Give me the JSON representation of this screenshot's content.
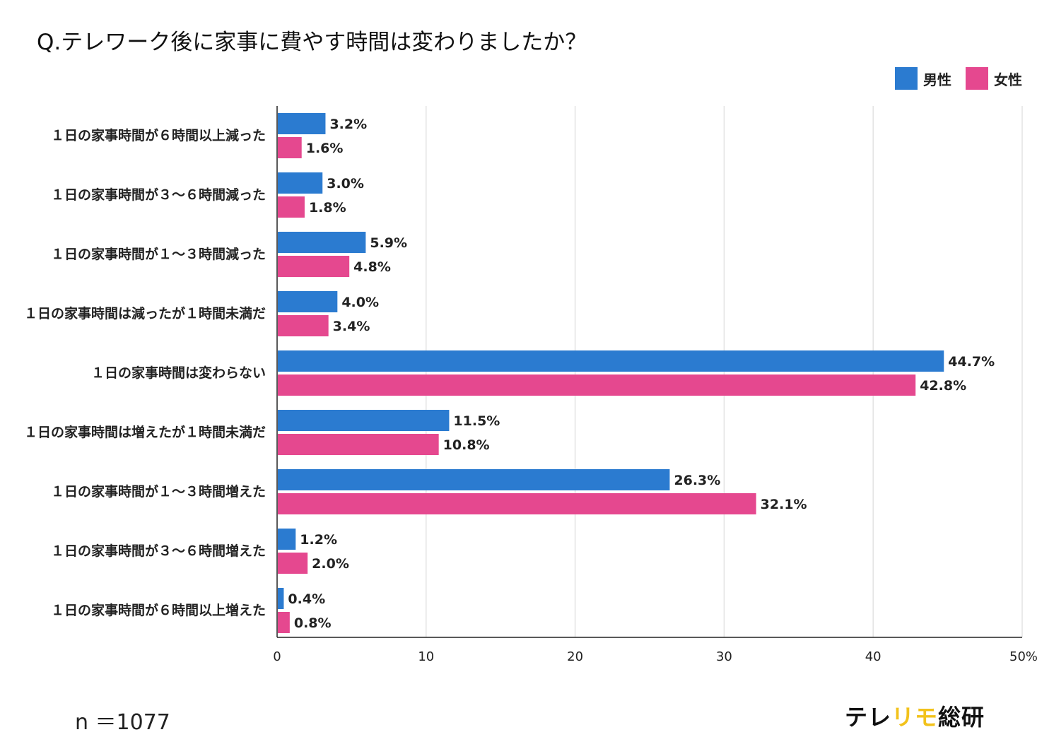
{
  "title": "Q.テレワーク後に家事に費やす時間は変わりましたか？",
  "sample_size": "n ＝1077",
  "logo": {
    "part1": "テレ",
    "part2": "リモ",
    "part3": "総研"
  },
  "colors": {
    "male": "#2b7bd0",
    "female": "#e5488f",
    "grid": "#e3e3e3",
    "axis": "#222222"
  },
  "chart_data": {
    "type": "bar",
    "orientation": "horizontal",
    "categories": [
      "１日の家事時間が６時間以上減った",
      "１日の家事時間が３～６時間減った",
      "１日の家事時間が１～３時間減った",
      "１日の家事時間は減ったが１時間未満だ",
      "１日の家事時間は変わらない",
      "１日の家事時間は増えたが１時間未満だ",
      "１日の家事時間が１～３時間増えた",
      "１日の家事時間が３～６時間増えた",
      "１日の家事時間が６時間以上増えた"
    ],
    "series": [
      {
        "name": "男性",
        "color": "#2b7bd0",
        "values": [
          3.2,
          3.0,
          5.9,
          4.0,
          44.7,
          11.5,
          26.3,
          1.2,
          0.4
        ]
      },
      {
        "name": "女性",
        "color": "#e5488f",
        "values": [
          1.6,
          1.8,
          4.8,
          3.4,
          42.8,
          10.8,
          32.1,
          2.0,
          0.8
        ]
      }
    ],
    "value_labels": [
      [
        "3.2%",
        "3.0%",
        "5.9%",
        "4.0%",
        "44.7%",
        "11.5%",
        "26.3%",
        "1.2%",
        "0.4%"
      ],
      [
        "1.6%",
        "1.8%",
        "4.8%",
        "3.4%",
        "42.8%",
        "10.8%",
        "32.1%",
        "2.0%",
        "0.8%"
      ]
    ],
    "xlim": [
      0,
      50
    ],
    "xticks": [
      0,
      10,
      20,
      30,
      40,
      50
    ],
    "xtick_labels": [
      "0",
      "10",
      "20",
      "30",
      "40",
      "50%"
    ],
    "grid": true,
    "legend": "top-right"
  }
}
